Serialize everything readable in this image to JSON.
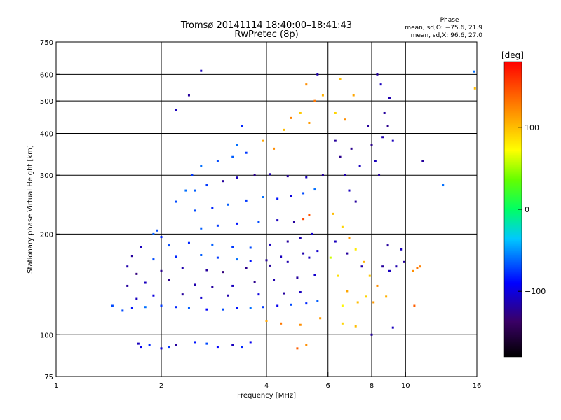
{
  "chart_data": {
    "type": "scatter",
    "title": "Tromsø 20141114 18:40:00–18:41:43",
    "subtitle": "RwPretec (8p)",
    "xlabel": "Frequency [MHz]",
    "ylabel": "Stationary phase Virtual Height [km]",
    "x_scale": "log",
    "y_scale": "log",
    "xlim": [
      1,
      16
    ],
    "ylim": [
      75,
      750
    ],
    "x_ticks": [
      1,
      2,
      4,
      6,
      8,
      10,
      16
    ],
    "x_tick_labels": [
      "1",
      "2",
      "4",
      "6",
      "8",
      "10",
      "16"
    ],
    "x_gridlines": [
      2,
      4,
      6,
      8,
      10
    ],
    "y_ticks": [
      75,
      100,
      200,
      300,
      400,
      500,
      600,
      750
    ],
    "y_tick_labels": [
      "75",
      "100",
      "200",
      "300",
      "400",
      "500",
      "600",
      "750"
    ],
    "y_gridlines": [
      100,
      200,
      300,
      400,
      500,
      600
    ],
    "grid": true,
    "stats": {
      "heading": "Phase",
      "line_o": "mean, sd,O: −75.6, 21.9",
      "line_x": "mean, sd,X:  96.6, 27.0"
    },
    "colorbar": {
      "label": "[deg]",
      "min": -180,
      "max": 180,
      "ticks": [
        100,
        0,
        -100
      ],
      "tick_labels": [
        "100",
        "0",
        "−100"
      ],
      "colormap": "rainbow"
    },
    "points": [
      {
        "f": 1.72,
        "h": 94,
        "p": -110
      },
      {
        "f": 1.75,
        "h": 92,
        "p": -95
      },
      {
        "f": 1.85,
        "h": 93,
        "p": -80
      },
      {
        "f": 2.0,
        "h": 91,
        "p": -100
      },
      {
        "f": 2.1,
        "h": 92,
        "p": -75
      },
      {
        "f": 2.2,
        "h": 93,
        "p": -120
      },
      {
        "f": 2.5,
        "h": 95,
        "p": -85
      },
      {
        "f": 2.7,
        "h": 94,
        "p": -70
      },
      {
        "f": 2.9,
        "h": 92,
        "p": -90
      },
      {
        "f": 3.2,
        "h": 93,
        "p": -110
      },
      {
        "f": 3.4,
        "h": 92,
        "p": -80
      },
      {
        "f": 3.6,
        "h": 95,
        "p": -95
      },
      {
        "f": 4.9,
        "h": 91,
        "p": 140
      },
      {
        "f": 5.2,
        "h": 93,
        "p": 120
      },
      {
        "f": 1.55,
        "h": 118,
        "p": -70
      },
      {
        "f": 1.65,
        "h": 120,
        "p": -85
      },
      {
        "f": 1.8,
        "h": 121,
        "p": -60
      },
      {
        "f": 2.0,
        "h": 122,
        "p": -75
      },
      {
        "f": 2.2,
        "h": 121,
        "p": -80
      },
      {
        "f": 2.4,
        "h": 120,
        "p": -65
      },
      {
        "f": 2.7,
        "h": 119,
        "p": -90
      },
      {
        "f": 3.0,
        "h": 119,
        "p": -70
      },
      {
        "f": 3.3,
        "h": 120,
        "p": -85
      },
      {
        "f": 3.6,
        "h": 120,
        "p": -60
      },
      {
        "f": 3.9,
        "h": 121,
        "p": -75
      },
      {
        "f": 4.3,
        "h": 122,
        "p": -95
      },
      {
        "f": 4.7,
        "h": 123,
        "p": -70
      },
      {
        "f": 5.2,
        "h": 124,
        "p": -80
      },
      {
        "f": 5.6,
        "h": 126,
        "p": -65
      },
      {
        "f": 1.7,
        "h": 128,
        "p": -110
      },
      {
        "f": 1.9,
        "h": 131,
        "p": -100
      },
      {
        "f": 2.3,
        "h": 132,
        "p": -120
      },
      {
        "f": 2.6,
        "h": 129,
        "p": -105
      },
      {
        "f": 3.1,
        "h": 131,
        "p": -115
      },
      {
        "f": 3.8,
        "h": 132,
        "p": -100
      },
      {
        "f": 4.5,
        "h": 133,
        "p": -120
      },
      {
        "f": 5.0,
        "h": 134,
        "p": -110
      },
      {
        "f": 1.6,
        "h": 140,
        "p": -120
      },
      {
        "f": 1.8,
        "h": 143,
        "p": -110
      },
      {
        "f": 2.1,
        "h": 146,
        "p": -125
      },
      {
        "f": 2.5,
        "h": 141,
        "p": -115
      },
      {
        "f": 2.8,
        "h": 139,
        "p": -120
      },
      {
        "f": 3.2,
        "h": 140,
        "p": -110
      },
      {
        "f": 3.7,
        "h": 144,
        "p": -125
      },
      {
        "f": 4.2,
        "h": 146,
        "p": -115
      },
      {
        "f": 4.9,
        "h": 148,
        "p": -120
      },
      {
        "f": 5.5,
        "h": 151,
        "p": -105
      },
      {
        "f": 1.7,
        "h": 152,
        "p": -130
      },
      {
        "f": 2.0,
        "h": 155,
        "p": -125
      },
      {
        "f": 2.3,
        "h": 158,
        "p": -115
      },
      {
        "f": 2.7,
        "h": 156,
        "p": -120
      },
      {
        "f": 3.0,
        "h": 154,
        "p": -130
      },
      {
        "f": 3.5,
        "h": 158,
        "p": -125
      },
      {
        "f": 4.1,
        "h": 161,
        "p": -120
      },
      {
        "f": 4.6,
        "h": 165,
        "p": -115
      },
      {
        "f": 5.3,
        "h": 170,
        "p": -110
      },
      {
        "f": 1.9,
        "h": 168,
        "p": -70
      },
      {
        "f": 2.2,
        "h": 171,
        "p": -80
      },
      {
        "f": 2.6,
        "h": 173,
        "p": -65
      },
      {
        "f": 2.9,
        "h": 170,
        "p": -75
      },
      {
        "f": 3.3,
        "h": 168,
        "p": -60
      },
      {
        "f": 3.6,
        "h": 166,
        "p": -85
      },
      {
        "f": 4.0,
        "h": 167,
        "p": -120
      },
      {
        "f": 4.4,
        "h": 171,
        "p": -110
      },
      {
        "f": 5.1,
        "h": 175,
        "p": -115
      },
      {
        "f": 5.6,
        "h": 178,
        "p": -105
      },
      {
        "f": 2.1,
        "h": 185,
        "p": -70
      },
      {
        "f": 2.4,
        "h": 188,
        "p": -80
      },
      {
        "f": 2.8,
        "h": 186,
        "p": -65
      },
      {
        "f": 3.2,
        "h": 183,
        "p": -75
      },
      {
        "f": 3.6,
        "h": 182,
        "p": -70
      },
      {
        "f": 4.1,
        "h": 186,
        "p": -110
      },
      {
        "f": 4.6,
        "h": 190,
        "p": -120
      },
      {
        "f": 5.0,
        "h": 195,
        "p": -115
      },
      {
        "f": 5.4,
        "h": 200,
        "p": -105
      },
      {
        "f": 1.95,
        "h": 205,
        "p": -70
      },
      {
        "f": 2.0,
        "h": 196,
        "p": -80
      },
      {
        "f": 2.6,
        "h": 208,
        "p": -65
      },
      {
        "f": 2.9,
        "h": 212,
        "p": -75
      },
      {
        "f": 3.3,
        "h": 215,
        "p": -85
      },
      {
        "f": 3.8,
        "h": 218,
        "p": -70
      },
      {
        "f": 4.3,
        "h": 220,
        "p": -110
      },
      {
        "f": 4.8,
        "h": 217,
        "p": -120
      },
      {
        "f": 5.1,
        "h": 222,
        "p": 150
      },
      {
        "f": 5.3,
        "h": 228,
        "p": 145
      },
      {
        "f": 2.5,
        "h": 235,
        "p": -70
      },
      {
        "f": 2.8,
        "h": 240,
        "p": -80
      },
      {
        "f": 3.1,
        "h": 245,
        "p": -65
      },
      {
        "f": 3.5,
        "h": 252,
        "p": -75
      },
      {
        "f": 3.9,
        "h": 258,
        "p": -60
      },
      {
        "f": 4.3,
        "h": 255,
        "p": -85
      },
      {
        "f": 4.7,
        "h": 260,
        "p": -100
      },
      {
        "f": 5.1,
        "h": 265,
        "p": -70
      },
      {
        "f": 5.5,
        "h": 272,
        "p": -60
      },
      {
        "f": 2.5,
        "h": 270,
        "p": -65
      },
      {
        "f": 2.7,
        "h": 280,
        "p": -75
      },
      {
        "f": 3.0,
        "h": 288,
        "p": -120
      },
      {
        "f": 3.3,
        "h": 295,
        "p": -110
      },
      {
        "f": 3.7,
        "h": 300,
        "p": -125
      },
      {
        "f": 4.1,
        "h": 302,
        "p": -115
      },
      {
        "f": 4.6,
        "h": 298,
        "p": -120
      },
      {
        "f": 5.2,
        "h": 296,
        "p": -110
      },
      {
        "f": 5.8,
        "h": 300,
        "p": -120
      },
      {
        "f": 2.6,
        "h": 320,
        "p": -60
      },
      {
        "f": 2.9,
        "h": 330,
        "p": -70
      },
      {
        "f": 3.2,
        "h": 340,
        "p": -65
      },
      {
        "f": 3.5,
        "h": 350,
        "p": -75
      },
      {
        "f": 3.3,
        "h": 370,
        "p": -60
      },
      {
        "f": 3.4,
        "h": 420,
        "p": -80
      },
      {
        "f": 3.9,
        "h": 380,
        "p": 110
      },
      {
        "f": 4.2,
        "h": 360,
        "p": 120
      },
      {
        "f": 4.5,
        "h": 410,
        "p": 100
      },
      {
        "f": 4.7,
        "h": 445,
        "p": 125
      },
      {
        "f": 5.0,
        "h": 460,
        "p": 95
      },
      {
        "f": 5.3,
        "h": 430,
        "p": 115
      },
      {
        "f": 5.5,
        "h": 500,
        "p": 130
      },
      {
        "f": 5.8,
        "h": 520,
        "p": 105
      },
      {
        "f": 5.2,
        "h": 560,
        "p": 120
      },
      {
        "f": 5.6,
        "h": 600,
        "p": -115
      },
      {
        "f": 6.5,
        "h": 580,
        "p": 100
      },
      {
        "f": 7.1,
        "h": 520,
        "p": 110
      },
      {
        "f": 6.3,
        "h": 460,
        "p": 90
      },
      {
        "f": 6.7,
        "h": 440,
        "p": 120
      },
      {
        "f": 6.3,
        "h": 380,
        "p": -120
      },
      {
        "f": 6.5,
        "h": 340,
        "p": -125
      },
      {
        "f": 6.7,
        "h": 300,
        "p": -115
      },
      {
        "f": 6.9,
        "h": 270,
        "p": -110
      },
      {
        "f": 7.2,
        "h": 250,
        "p": -120
      },
      {
        "f": 7.0,
        "h": 360,
        "p": -125
      },
      {
        "f": 7.4,
        "h": 320,
        "p": -110
      },
      {
        "f": 7.8,
        "h": 420,
        "p": -120
      },
      {
        "f": 8.0,
        "h": 370,
        "p": -125
      },
      {
        "f": 8.2,
        "h": 330,
        "p": -110
      },
      {
        "f": 8.4,
        "h": 300,
        "p": -120
      },
      {
        "f": 8.6,
        "h": 390,
        "p": -115
      },
      {
        "f": 8.9,
        "h": 420,
        "p": -125
      },
      {
        "f": 9.2,
        "h": 380,
        "p": -110
      },
      {
        "f": 8.7,
        "h": 460,
        "p": -120
      },
      {
        "f": 9.0,
        "h": 510,
        "p": -115
      },
      {
        "f": 8.5,
        "h": 560,
        "p": -110
      },
      {
        "f": 8.3,
        "h": 600,
        "p": -120
      },
      {
        "f": 6.2,
        "h": 230,
        "p": 100
      },
      {
        "f": 6.6,
        "h": 210,
        "p": 90
      },
      {
        "f": 6.9,
        "h": 195,
        "p": 115
      },
      {
        "f": 7.2,
        "h": 180,
        "p": 80
      },
      {
        "f": 7.6,
        "h": 165,
        "p": 105
      },
      {
        "f": 7.9,
        "h": 150,
        "p": 95
      },
      {
        "f": 8.3,
        "h": 140,
        "p": 120
      },
      {
        "f": 6.1,
        "h": 170,
        "p": 60
      },
      {
        "f": 6.4,
        "h": 150,
        "p": 85
      },
      {
        "f": 6.8,
        "h": 135,
        "p": 110
      },
      {
        "f": 7.3,
        "h": 125,
        "p": 100
      },
      {
        "f": 6.6,
        "h": 122,
        "p": 75
      },
      {
        "f": 7.7,
        "h": 130,
        "p": 90
      },
      {
        "f": 8.1,
        "h": 125,
        "p": 115
      },
      {
        "f": 8.8,
        "h": 130,
        "p": 105
      },
      {
        "f": 6.3,
        "h": 190,
        "p": -110
      },
      {
        "f": 6.8,
        "h": 175,
        "p": -120
      },
      {
        "f": 7.5,
        "h": 160,
        "p": -115
      },
      {
        "f": 8.6,
        "h": 160,
        "p": -120
      },
      {
        "f": 9.0,
        "h": 155,
        "p": -110
      },
      {
        "f": 9.4,
        "h": 160,
        "p": -115
      },
      {
        "f": 9.9,
        "h": 165,
        "p": -120
      },
      {
        "f": 9.7,
        "h": 180,
        "p": -110
      },
      {
        "f": 8.9,
        "h": 185,
        "p": -120
      },
      {
        "f": 10.5,
        "h": 155,
        "p": 120
      },
      {
        "f": 10.8,
        "h": 158,
        "p": 130
      },
      {
        "f": 11.0,
        "h": 160,
        "p": 125
      },
      {
        "f": 10.6,
        "h": 122,
        "p": 140
      },
      {
        "f": 11.2,
        "h": 330,
        "p": -120
      },
      {
        "f": 12.8,
        "h": 280,
        "p": -60
      },
      {
        "f": 2.6,
        "h": 615,
        "p": -110
      },
      {
        "f": 15.7,
        "h": 612,
        "p": -60
      },
      {
        "f": 15.8,
        "h": 545,
        "p": 100
      },
      {
        "f": 2.2,
        "h": 470,
        "p": -110
      },
      {
        "f": 2.4,
        "h": 520,
        "p": -120
      },
      {
        "f": 1.45,
        "h": 122,
        "p": -70
      },
      {
        "f": 1.6,
        "h": 160,
        "p": -115
      },
      {
        "f": 1.65,
        "h": 172,
        "p": -120
      },
      {
        "f": 1.75,
        "h": 183,
        "p": -110
      },
      {
        "f": 1.9,
        "h": 200,
        "p": -65
      },
      {
        "f": 2.2,
        "h": 250,
        "p": -70
      },
      {
        "f": 2.35,
        "h": 270,
        "p": -60
      },
      {
        "f": 2.45,
        "h": 300,
        "p": -75
      },
      {
        "f": 4.0,
        "h": 110,
        "p": 110
      },
      {
        "f": 4.4,
        "h": 108,
        "p": 130
      },
      {
        "f": 5.0,
        "h": 107,
        "p": 120
      },
      {
        "f": 5.7,
        "h": 112,
        "p": 115
      },
      {
        "f": 6.6,
        "h": 108,
        "p": 90
      },
      {
        "f": 7.2,
        "h": 106,
        "p": 100
      },
      {
        "f": 8.0,
        "h": 100,
        "p": -120
      },
      {
        "f": 9.2,
        "h": 105,
        "p": -110
      }
    ]
  }
}
